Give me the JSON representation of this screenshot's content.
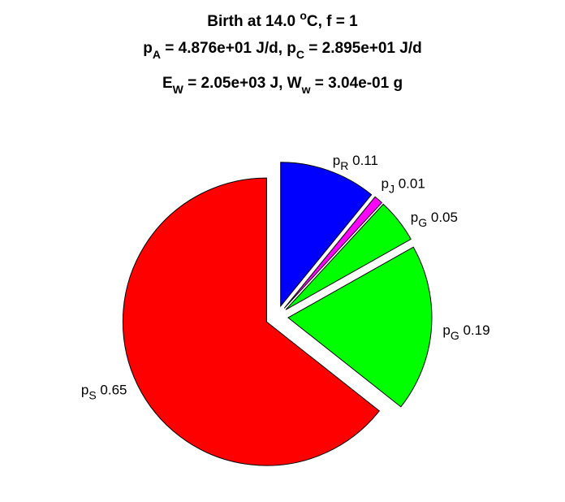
{
  "chart_data": {
    "type": "pie",
    "title_lines": [
      {
        "parts": [
          {
            "t": "Birth at 14.0 "
          },
          {
            "t": "o",
            "sup": true
          },
          {
            "t": "C, f = 1"
          }
        ]
      },
      {
        "parts": [
          {
            "t": "p"
          },
          {
            "t": "A",
            "sub": true
          },
          {
            "t": " = 4.876e+01 J/d, p"
          },
          {
            "t": "C",
            "sub": true
          },
          {
            "t": " = 2.895e+01 J/d"
          }
        ]
      },
      {
        "parts": [
          {
            "t": "E"
          },
          {
            "t": "W",
            "sub": true
          },
          {
            "t": " = 2.05e+03 J, W"
          },
          {
            "t": "w",
            "sub": true
          },
          {
            "t": " = 3.04e-01 g"
          }
        ]
      }
    ],
    "slices": [
      {
        "base": "p",
        "sub": "R",
        "value": 0.11,
        "color": "#0000ff"
      },
      {
        "base": "p",
        "sub": "J",
        "value": 0.01,
        "color": "#ff00ff"
      },
      {
        "base": "p",
        "sub": "G",
        "value": 0.05,
        "color": "#00ff00"
      },
      {
        "base": "p",
        "sub": "G",
        "value": 0.19,
        "color": "#00ff00"
      },
      {
        "base": "p",
        "sub": "S",
        "value": 0.65,
        "color": "#ff0000"
      }
    ]
  }
}
